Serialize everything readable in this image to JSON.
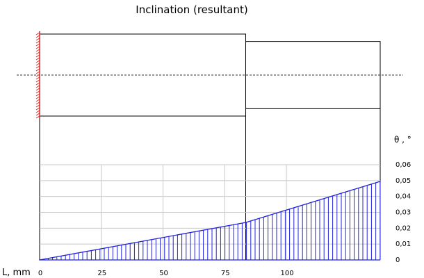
{
  "chart_data": {
    "type": "area",
    "title": "Inclination (resultant)",
    "xlabel": "L, mm",
    "ylabel": "θ ,   °",
    "x_ticks": [
      0,
      25,
      50,
      75,
      100
    ],
    "y_ticks": [
      0,
      0.01,
      0.02,
      0.03,
      0.04,
      0.05,
      0.06
    ],
    "y_tick_labels": [
      "0",
      "0,01",
      "0,02",
      "0,03",
      "0,04",
      "0,05",
      "0,06"
    ],
    "xlim": [
      0,
      138
    ],
    "ylim": [
      0,
      0.06
    ],
    "grid": true,
    "support": "fixed-left",
    "segments": [
      {
        "name": "",
        "start_mm": 0,
        "end_mm": 83.5,
        "relative_height": 1.0
      },
      {
        "name": "",
        "start_mm": 83.5,
        "end_mm": 138,
        "relative_height": 0.82
      }
    ],
    "series": [
      {
        "name": "",
        "x": [
          0,
          83.5,
          138
        ],
        "y": [
          0,
          0.0236,
          0.0495
        ]
      }
    ],
    "colors": {
      "curve": "#2222dd",
      "grid": "#c8c8c8",
      "outline": "#000000",
      "support": "#dd2222"
    }
  }
}
